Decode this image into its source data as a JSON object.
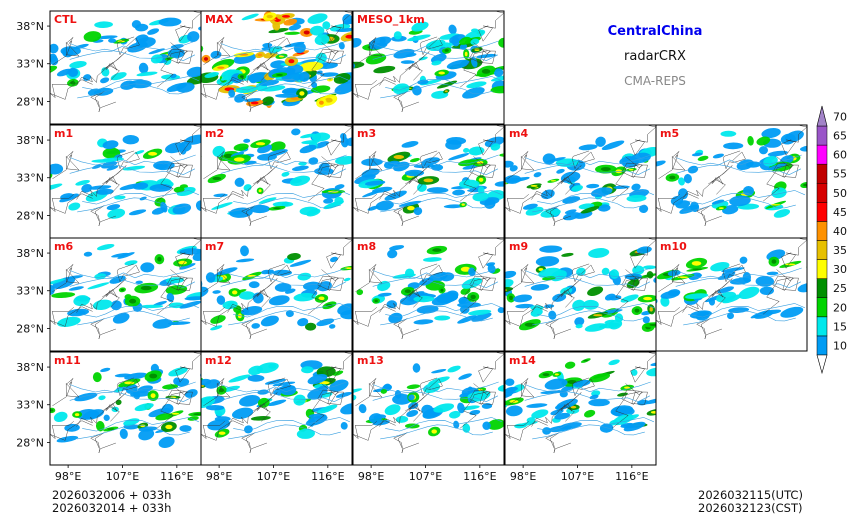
{
  "header": {
    "region": "CentralChina",
    "variable": "radarCRX",
    "model": "CMA-REPS"
  },
  "footer": {
    "init_line1": "2026032006  +  033h",
    "init_line2": "2026032014  +  033h",
    "valid_utc": "2026032115(UTC)",
    "valid_cst": "2026032123(CST)"
  },
  "chart_data": {
    "type": "heatmap",
    "title": "CentralChina radarCRX CMA-REPS",
    "panels": [
      {
        "label": "CTL",
        "row": 0,
        "col": 0
      },
      {
        "label": "MAX",
        "row": 0,
        "col": 1
      },
      {
        "label": "MESO_1km",
        "row": 0,
        "col": 2
      },
      {
        "label": "m1",
        "row": 1,
        "col": 0
      },
      {
        "label": "m2",
        "row": 1,
        "col": 1
      },
      {
        "label": "m3",
        "row": 1,
        "col": 2
      },
      {
        "label": "m4",
        "row": 1,
        "col": 3
      },
      {
        "label": "m5",
        "row": 1,
        "col": 4
      },
      {
        "label": "m6",
        "row": 2,
        "col": 0
      },
      {
        "label": "m7",
        "row": 2,
        "col": 1
      },
      {
        "label": "m8",
        "row": 2,
        "col": 2
      },
      {
        "label": "m9",
        "row": 2,
        "col": 3
      },
      {
        "label": "m10",
        "row": 2,
        "col": 4
      },
      {
        "label": "m11",
        "row": 3,
        "col": 0
      },
      {
        "label": "m12",
        "row": 3,
        "col": 1
      },
      {
        "label": "m13",
        "row": 3,
        "col": 2
      },
      {
        "label": "m14",
        "row": 3,
        "col": 3
      }
    ],
    "lat_ticks": [
      {
        "value": 38,
        "label": "38°N"
      },
      {
        "value": 33,
        "label": "33°N"
      },
      {
        "value": 28,
        "label": "28°N"
      }
    ],
    "lon_ticks": [
      {
        "value": 98,
        "label": "98°E"
      },
      {
        "value": 107,
        "label": "107°E"
      },
      {
        "value": 116,
        "label": "116°E"
      }
    ],
    "lon_range": [
      95,
      120
    ],
    "lat_range": [
      25,
      40
    ],
    "colorbar": {
      "levels": [
        10,
        15,
        20,
        25,
        30,
        35,
        40,
        45,
        50,
        55,
        60,
        65,
        70
      ],
      "labels": [
        "10",
        "15",
        "20",
        "25",
        "30",
        "35",
        "40",
        "45",
        "50",
        "55",
        "60",
        "65",
        "70"
      ],
      "colors": [
        "#009cf4",
        "#00e8ec",
        "#00d400",
        "#008f00",
        "#fefe00",
        "#e7c000",
        "#fe9100",
        "#ff0000",
        "#d60000",
        "#c00000",
        "#ff00ff",
        "#9a55c8"
      ],
      "under_color": "#ffffff",
      "over_color": "#a283c8",
      "extend": "both"
    },
    "label_color": "#ee1111"
  }
}
